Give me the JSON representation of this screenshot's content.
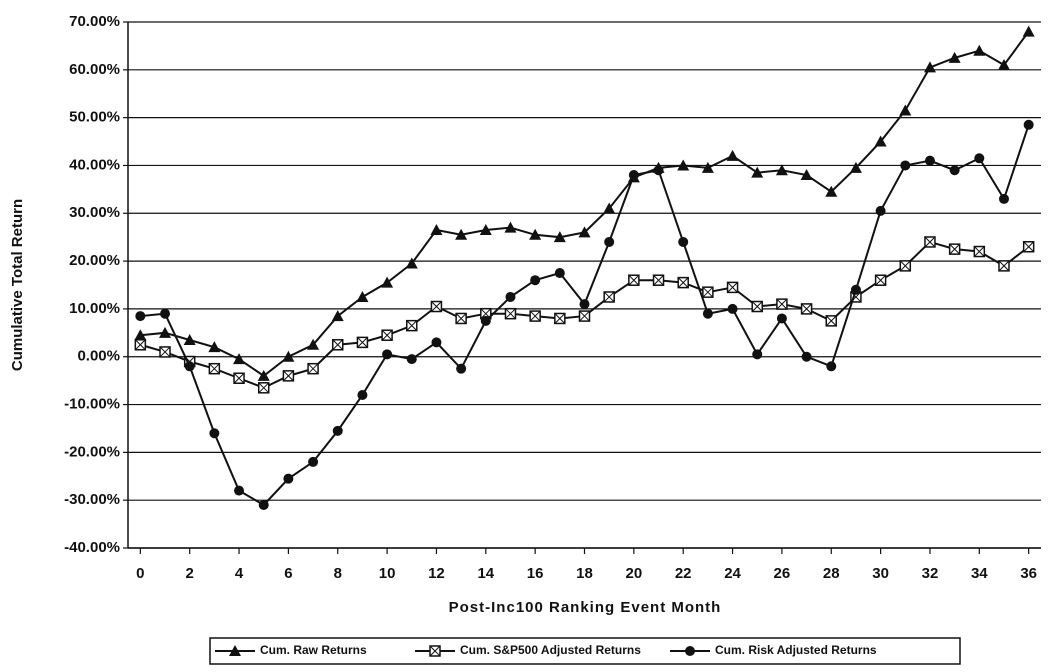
{
  "chart_data": {
    "type": "line",
    "y_label": "Cumulative Total Return",
    "x_label": "Post-Inc100 Ranking Event Month",
    "x": [
      0,
      1,
      2,
      3,
      4,
      5,
      6,
      7,
      8,
      9,
      10,
      11,
      12,
      13,
      14,
      15,
      16,
      17,
      18,
      19,
      20,
      21,
      22,
      23,
      24,
      25,
      26,
      27,
      28,
      29,
      30,
      31,
      32,
      33,
      34,
      35,
      36
    ],
    "xlim": [
      -0.5,
      36.5
    ],
    "xticks": [
      0,
      2,
      4,
      6,
      8,
      10,
      12,
      14,
      16,
      18,
      20,
      22,
      24,
      26,
      28,
      30,
      32,
      34,
      36
    ],
    "ylim": [
      -40,
      70
    ],
    "yticks": [
      {
        "value": -40,
        "label": "-40.00%"
      },
      {
        "value": -30,
        "label": "-30.00%"
      },
      {
        "value": -20,
        "label": "-20.00%"
      },
      {
        "value": -10,
        "label": "-10.00%"
      },
      {
        "value": 0,
        "label": "0.00%"
      },
      {
        "value": 10,
        "label": "10.00%"
      },
      {
        "value": 20,
        "label": "20.00%"
      },
      {
        "value": 30,
        "label": "30.00%"
      },
      {
        "value": 40,
        "label": "40.00%"
      },
      {
        "value": 50,
        "label": "50.00%"
      },
      {
        "value": 60,
        "label": "60.00%"
      },
      {
        "value": 70,
        "label": "70.00%"
      }
    ],
    "grid": true,
    "legend": "bottom",
    "series": [
      {
        "name": "Cum. Raw Returns",
        "color": "#111111",
        "marker": "triangle",
        "values": [
          4.5,
          5,
          3.5,
          2,
          -0.5,
          -4,
          0,
          2.5,
          8.5,
          12.5,
          15.5,
          19.5,
          26.5,
          25.5,
          26.5,
          27,
          25.5,
          25,
          26,
          31,
          37.5,
          39.5,
          40,
          39.5,
          42,
          38.5,
          39,
          38,
          34.5,
          39.5,
          45,
          51.5,
          60.5,
          62.5,
          64,
          61,
          68
        ]
      },
      {
        "name": "Cum. S&P500 Adjusted Returns",
        "color": "#111111",
        "marker": "square",
        "values": [
          2.5,
          1,
          -1,
          -2.5,
          -4.5,
          -6.5,
          -4,
          -2.5,
          2.5,
          3,
          4.5,
          6.5,
          10.5,
          8,
          9,
          9,
          8.5,
          8,
          8.5,
          12.5,
          16,
          16,
          15.5,
          13.5,
          14.5,
          10.5,
          11,
          10,
          7.5,
          12.5,
          16,
          19,
          24,
          22.5,
          22,
          19,
          23
        ]
      },
      {
        "name": "Cum. Risk Adjusted Returns",
        "color": "#111111",
        "marker": "circle",
        "values": [
          8.5,
          9,
          -2,
          -16,
          -28,
          -31,
          -25.5,
          -22,
          -15.5,
          -8,
          0.5,
          -0.5,
          3,
          -2.5,
          7.5,
          12.5,
          16,
          17.5,
          11,
          24,
          38,
          39,
          24,
          9,
          10,
          0.5,
          8,
          0,
          -2,
          14,
          30.5,
          40,
          41,
          39,
          41.5,
          33,
          48.5
        ]
      }
    ]
  }
}
